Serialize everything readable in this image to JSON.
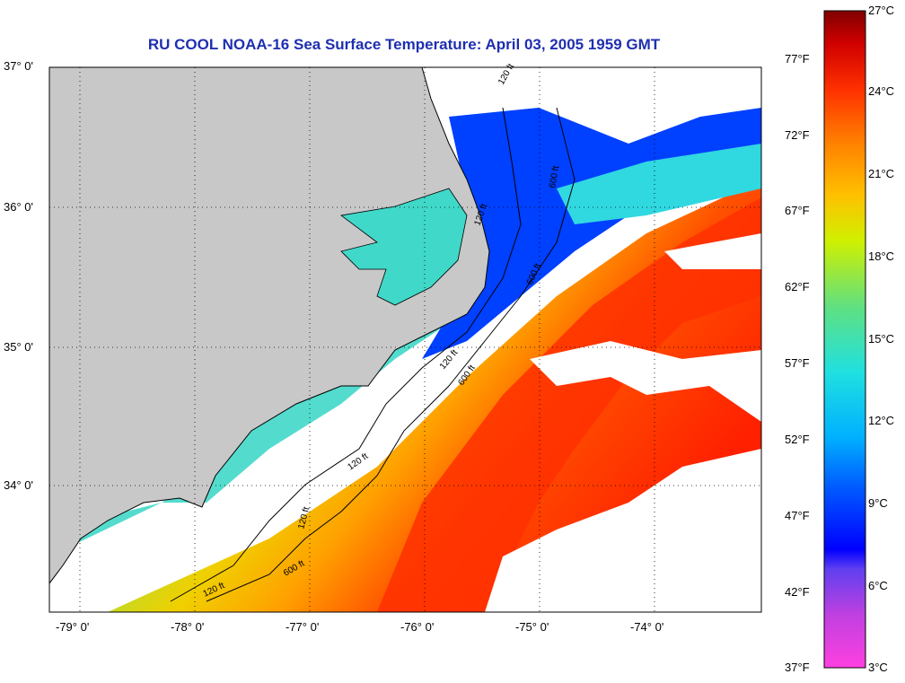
{
  "title": "RU COOL  NOAA-16  Sea Surface Temperature:  April 03, 2005 1959 GMT",
  "lat_labels": [
    "37° 0'",
    "36° 0'",
    "35° 0'",
    "34° 0'"
  ],
  "lon_labels": [
    "-79° 0'",
    "-78° 0'",
    "-77° 0'",
    "-76° 0'",
    "-75° 0'",
    "-74° 0'"
  ],
  "contour_labels": [
    "120 ft",
    "600 ft",
    "120 ft",
    "600 ft",
    "120 ft",
    "120 ft",
    "600 ft",
    "120 ft",
    "120 ft",
    "600 ft"
  ],
  "colorbar": {
    "celsius_labels": [
      "27°C",
      "24°C",
      "21°C",
      "18°C",
      "15°C",
      "12°C",
      "9°C",
      "6°C",
      "3°C"
    ],
    "fahrenheit_labels": [
      "77°F",
      "72°F",
      "67°F",
      "62°F",
      "57°F",
      "52°F",
      "47°F",
      "42°F",
      "37°F"
    ],
    "colors": [
      "#ff40e0",
      "#8040e0",
      "#0000ff",
      "#0060ff",
      "#00b0ff",
      "#20e0e0",
      "#40e0a0",
      "#a0e040",
      "#f0f000",
      "#ffa000",
      "#ff5000",
      "#ff2000",
      "#d00000",
      "#800000"
    ]
  },
  "colors": {
    "land": "#c8c8c8",
    "cloud": "#ffffff",
    "title": "#1f2fb0"
  }
}
